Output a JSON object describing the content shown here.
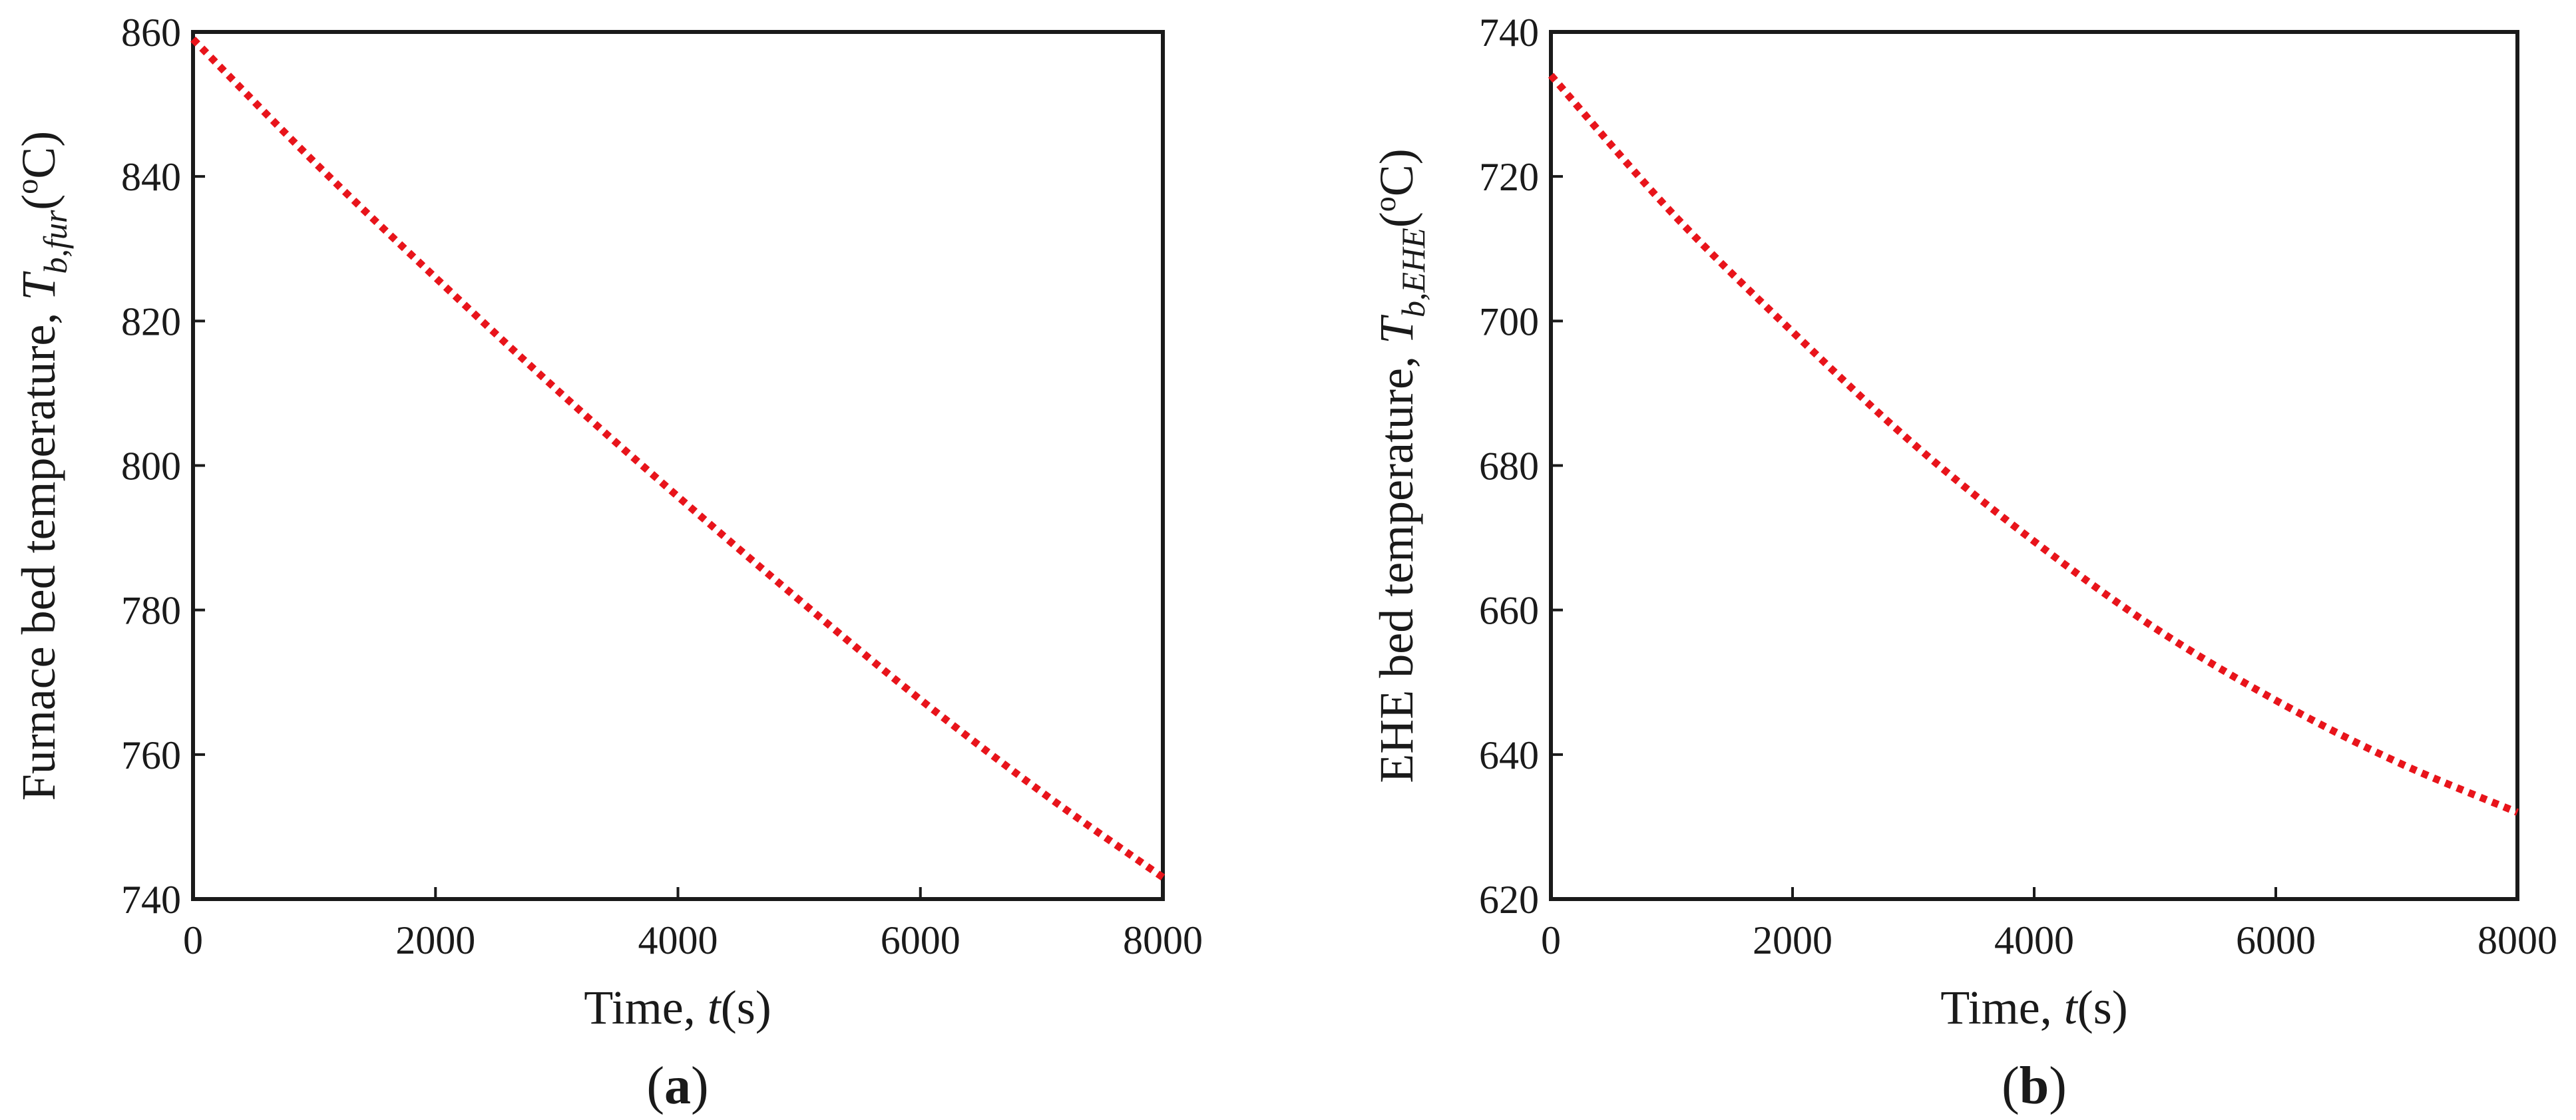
{
  "chart_data": [
    {
      "type": "line",
      "panel_label": "a",
      "xlabel_prefix": "Time, ",
      "xlabel_var": "t",
      "xlabel_unit": "(s)",
      "ylabel_prefix": "Furnace bed temperature, ",
      "ylabel_var": "T",
      "ylabel_sub": "b,fur",
      "ylabel_unit_open": "(",
      "ylabel_unit_sup": "o",
      "ylabel_unit_close": "C)",
      "xlim": [
        0,
        8000
      ],
      "ylim": [
        740,
        860
      ],
      "xticks": [
        0,
        2000,
        4000,
        6000,
        8000
      ],
      "yticks": [
        740,
        760,
        780,
        800,
        820,
        840,
        860
      ],
      "grid": false,
      "series": [
        {
          "color": "#e8141b",
          "style": "dotted",
          "x": [
            0,
            1000,
            2000,
            3000,
            4000,
            5000,
            6000,
            7000,
            8000
          ],
          "y": [
            859.0,
            842.0,
            826.0,
            810.5,
            795.7,
            781.4,
            767.6,
            754.8,
            743.0
          ]
        }
      ]
    },
    {
      "type": "line",
      "panel_label": "b",
      "xlabel_prefix": "Time, ",
      "xlabel_var": "t",
      "xlabel_unit": "(s)",
      "ylabel_prefix": "EHE bed temperature, ",
      "ylabel_var": "T",
      "ylabel_sub": "b,EHE",
      "ylabel_unit_open": "(",
      "ylabel_unit_sup": "o",
      "ylabel_unit_close": "C)",
      "xlim": [
        0,
        8000
      ],
      "ylim": [
        620,
        740
      ],
      "xticks": [
        0,
        2000,
        4000,
        6000,
        8000
      ],
      "yticks": [
        620,
        640,
        660,
        680,
        700,
        720,
        740
      ],
      "grid": false,
      "series": [
        {
          "color": "#e8141b",
          "style": "dotted",
          "x": [
            0,
            1000,
            2000,
            3000,
            4000,
            5000,
            6000,
            7000,
            8000
          ],
          "y": [
            734.0,
            715.0,
            698.5,
            683.0,
            669.5,
            657.5,
            647.5,
            639.0,
            632.0
          ]
        }
      ]
    }
  ]
}
